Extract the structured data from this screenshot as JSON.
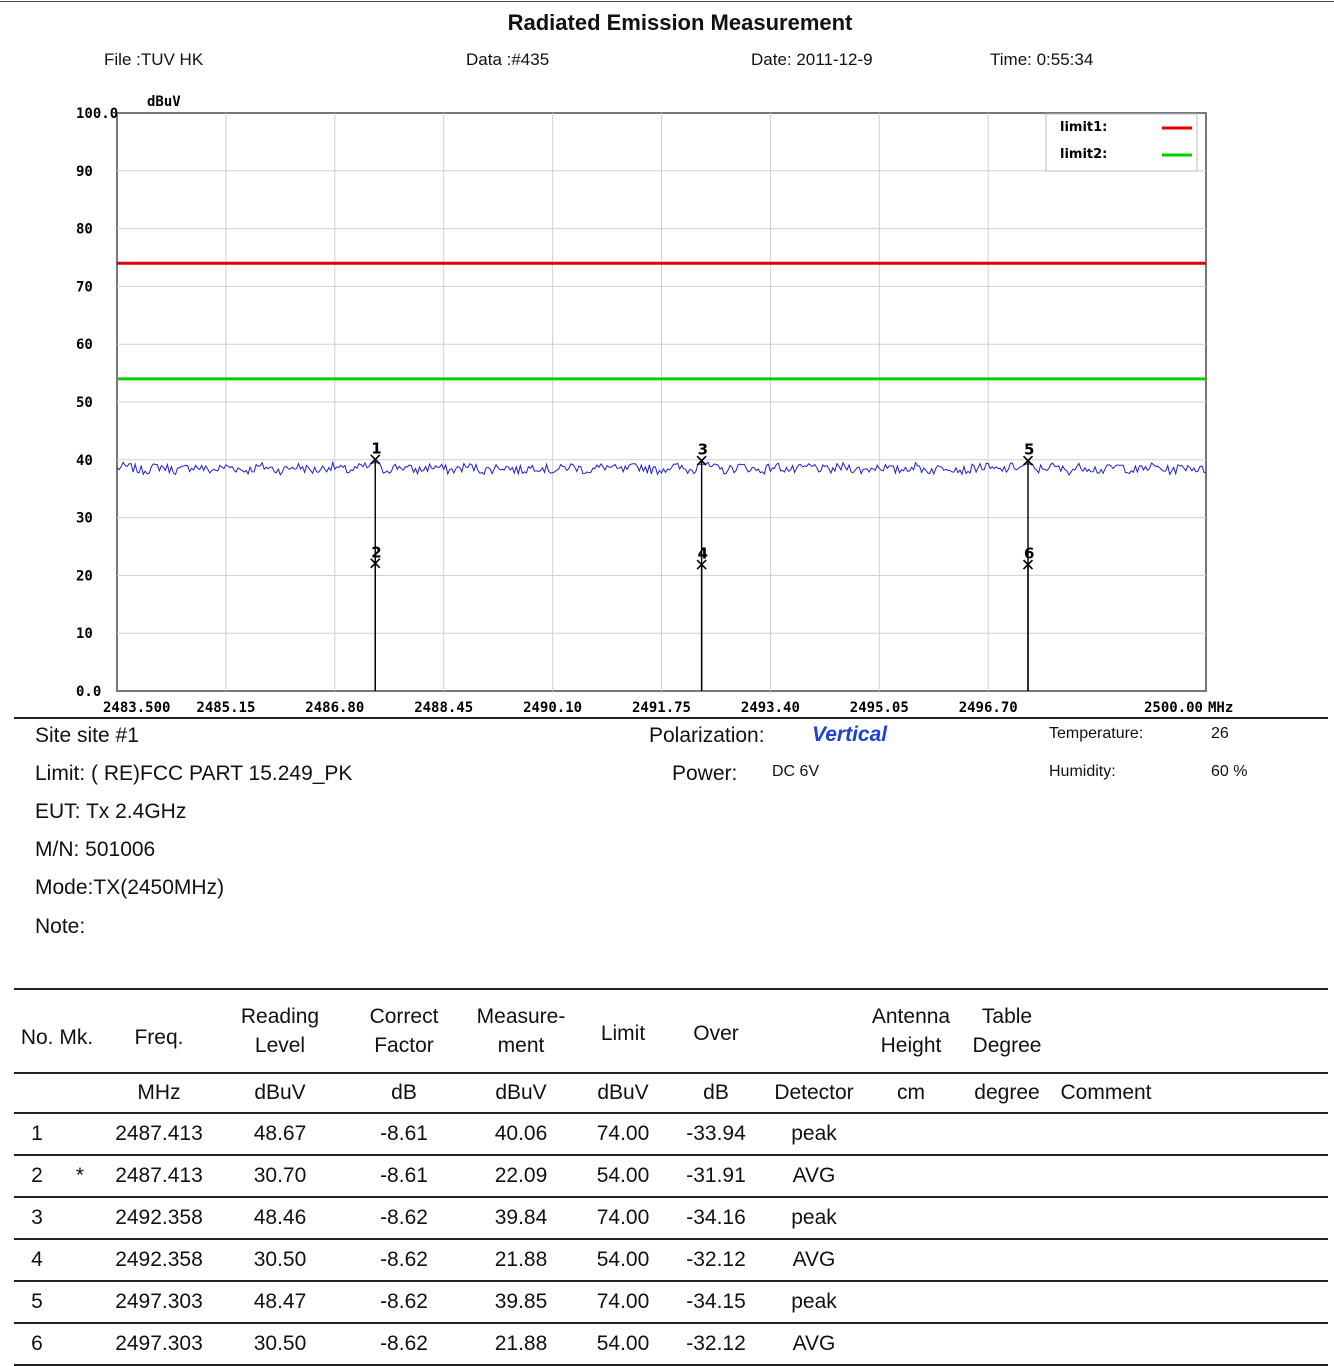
{
  "header": {
    "title": "Radiated Emission Measurement",
    "file": "File :TUV HK",
    "data": "Data :#435",
    "date": "Date: 2011-12-9",
    "time": "Time: 0:55:34"
  },
  "chart_data": {
    "type": "line",
    "ylabel": "dBuV",
    "xunit": "MHz",
    "ylim": [
      0,
      100
    ],
    "xlim": [
      2483.5,
      2500.0
    ],
    "y_ticks": [
      "100.0",
      "90",
      "80",
      "70",
      "60",
      "50",
      "40",
      "30",
      "20",
      "10",
      "0.0"
    ],
    "x_ticks": [
      "2483.500",
      "2485.15",
      "2486.80",
      "2488.45",
      "2490.10",
      "2491.75",
      "2493.40",
      "2495.05",
      "2496.70",
      "2500.00"
    ],
    "legend": [
      "limit1:",
      "limit2:"
    ],
    "legend_position": "top-right",
    "grid": true,
    "limits": [
      {
        "name": "limit1:",
        "value": 74.0,
        "color": "#e00000"
      },
      {
        "name": "limit2:",
        "value": 54.0,
        "color": "#00d000"
      }
    ],
    "trace": {
      "color": "#2020d0",
      "level": 38.5
    },
    "markers": [
      {
        "label": "1",
        "freq": 2487.413,
        "value": 40.06
      },
      {
        "label": "2",
        "freq": 2487.413,
        "value": 22.09
      },
      {
        "label": "3",
        "freq": 2492.358,
        "value": 39.84
      },
      {
        "label": "4",
        "freq": 2492.358,
        "value": 21.88
      },
      {
        "label": "5",
        "freq": 2497.303,
        "value": 39.85
      },
      {
        "label": "6",
        "freq": 2497.303,
        "value": 21.88
      }
    ]
  },
  "info": {
    "site": "Site  site #1",
    "limit": "Limit:  ( RE)FCC PART 15.249_PK",
    "eut": "EUT:  Tx 2.4GHz",
    "mn": "M/N:  501006",
    "mode": "Mode:TX(2450MHz)",
    "note": "Note:",
    "polarization_label": "Polarization:",
    "polarization_value": "Vertical",
    "power_label": "Power:",
    "power_value": "DC 6V",
    "temperature_label": "Temperature:",
    "temperature_value": "26",
    "humidity_label": "Humidity:",
    "humidity_value": "60 %"
  },
  "table": {
    "headers": [
      [
        "No. Mk."
      ],
      [
        "Freq."
      ],
      [
        "Reading",
        "Level"
      ],
      [
        "Correct",
        "Factor"
      ],
      [
        "Measure-",
        "ment"
      ],
      [
        "Limit"
      ],
      [
        "Over"
      ],
      [
        ""
      ],
      [
        "Antenna",
        "Height"
      ],
      [
        "Table",
        "Degree"
      ],
      [
        ""
      ]
    ],
    "units": [
      "",
      "MHz",
      "dBuV",
      "dB",
      "dBuV",
      "dBuV",
      "dB",
      "Detector",
      "cm",
      "degree",
      "Comment"
    ],
    "rows": [
      {
        "no": "1",
        "mk": "",
        "freq": "2487.413",
        "reading": "48.67",
        "factor": "-8.61",
        "measure": "40.06",
        "limit": "74.00",
        "over": "-33.94",
        "detector": "peak"
      },
      {
        "no": "2",
        "mk": "*",
        "freq": "2487.413",
        "reading": "30.70",
        "factor": "-8.61",
        "measure": "22.09",
        "limit": "54.00",
        "over": "-31.91",
        "detector": "AVG"
      },
      {
        "no": "3",
        "mk": "",
        "freq": "2492.358",
        "reading": "48.46",
        "factor": "-8.62",
        "measure": "39.84",
        "limit": "74.00",
        "over": "-34.16",
        "detector": "peak"
      },
      {
        "no": "4",
        "mk": "",
        "freq": "2492.358",
        "reading": "30.50",
        "factor": "-8.62",
        "measure": "21.88",
        "limit": "54.00",
        "over": "-32.12",
        "detector": "AVG"
      },
      {
        "no": "5",
        "mk": "",
        "freq": "2497.303",
        "reading": "48.47",
        "factor": "-8.62",
        "measure": "39.85",
        "limit": "74.00",
        "over": "-34.15",
        "detector": "peak"
      },
      {
        "no": "6",
        "mk": "",
        "freq": "2497.303",
        "reading": "30.50",
        "factor": "-8.62",
        "measure": "21.88",
        "limit": "54.00",
        "over": "-32.12",
        "detector": "AVG"
      }
    ]
  }
}
